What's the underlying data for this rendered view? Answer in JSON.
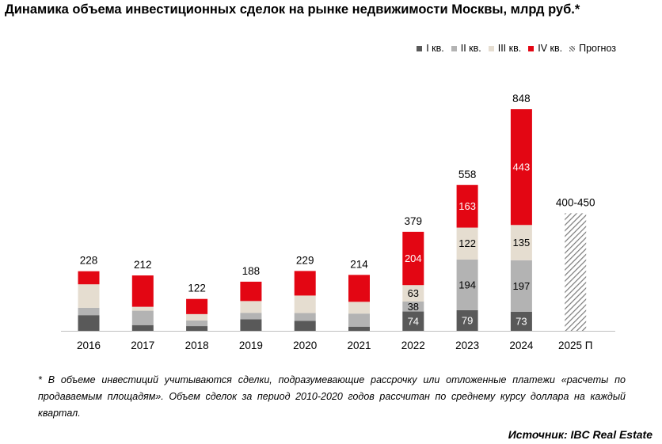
{
  "chart_data": {
    "type": "bar",
    "stacked": true,
    "title": "Динамика объема инвестиционных сделок на рынке недвижимости Москвы, млрд руб.*",
    "categories": [
      "2016",
      "2017",
      "2018",
      "2019",
      "2020",
      "2021",
      "2022",
      "2023",
      "2024",
      "2025 П"
    ],
    "series": [
      {
        "name": "I кв.",
        "color": "#595959",
        "values": [
          60,
          22,
          18,
          44,
          38,
          16,
          74,
          79,
          73,
          null
        ]
      },
      {
        "name": "II кв.",
        "color": "#b3b3b3",
        "values": [
          28,
          55,
          22,
          25,
          30,
          50,
          38,
          194,
          197,
          null
        ]
      },
      {
        "name": "III кв.",
        "color": "#e5ddd0",
        "values": [
          90,
          15,
          24,
          45,
          67,
          45,
          63,
          122,
          135,
          null
        ]
      },
      {
        "name": "IV кв.",
        "color": "#e30613",
        "values": [
          50,
          120,
          58,
          74,
          94,
          103,
          204,
          163,
          443,
          null
        ]
      }
    ],
    "totals": [
      "228",
      "212",
      "122",
      "188",
      "229",
      "214",
      "379",
      "558",
      "848",
      "400-450"
    ],
    "forecast": {
      "name": "Прогноз",
      "category": "2025 П",
      "range": [
        400,
        450
      ],
      "label": "400-450"
    },
    "segment_labels": [
      {
        "category": "2022",
        "series": "I кв.",
        "text": "74"
      },
      {
        "category": "2022",
        "series": "II кв.",
        "text": "38"
      },
      {
        "category": "2022",
        "series": "III кв.",
        "text": "63"
      },
      {
        "category": "2022",
        "series": "IV кв.",
        "text": "204"
      },
      {
        "category": "2023",
        "series": "I кв.",
        "text": "79"
      },
      {
        "category": "2023",
        "series": "II кв.",
        "text": "194"
      },
      {
        "category": "2023",
        "series": "III кв.",
        "text": "122"
      },
      {
        "category": "2023",
        "series": "IV кв.",
        "text": "163"
      },
      {
        "category": "2024",
        "series": "I кв.",
        "text": "73"
      },
      {
        "category": "2024",
        "series": "II кв.",
        "text": "197"
      },
      {
        "category": "2024",
        "series": "III кв.",
        "text": "135"
      },
      {
        "category": "2024",
        "series": "IV кв.",
        "text": "443"
      }
    ],
    "legend": [
      "I кв.",
      "II кв.",
      "III кв.",
      "IV кв.",
      "Прогноз"
    ],
    "legend_position": "top-right",
    "grid": false,
    "ylim": [
      0,
      848
    ]
  },
  "footnote": "* В объеме инвестиций учитываются сделки, подразумевающие рассрочку или отложенные платежи «расчеты по продаваемым площадям». Объем сделок за период 2010-2020 годов рассчитан по среднему курсу доллара на каждый квартал.",
  "source": "Источник: IBC Real Estate"
}
